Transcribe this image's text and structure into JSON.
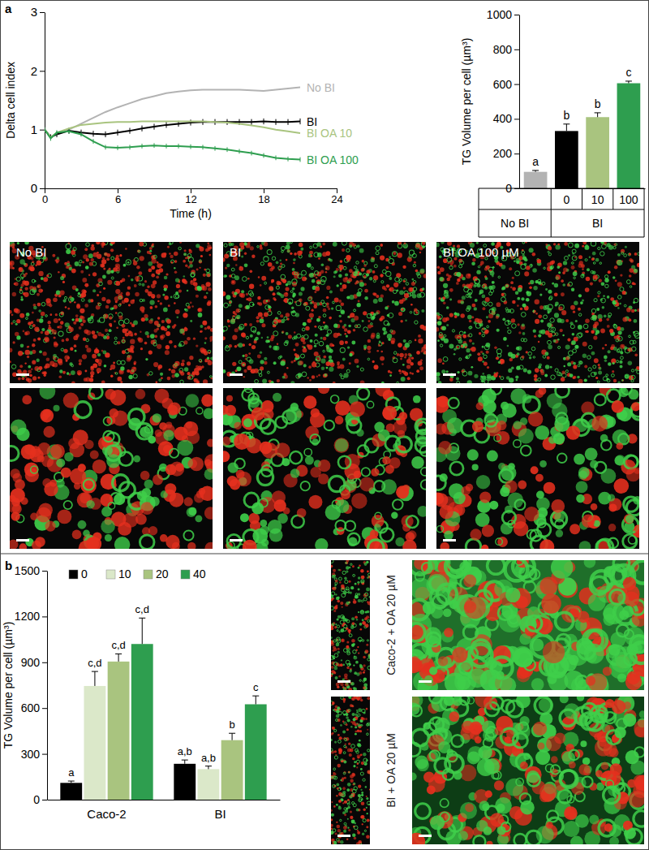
{
  "figure": {
    "panel_labels": [
      "a",
      "b"
    ],
    "micrographs": [
      "No BI",
      "BI",
      "BI OA 100 µM",
      "Caco-2 + OA 20 µM",
      "BI + OA 20 µM"
    ]
  },
  "chart_data": [
    {
      "type": "line",
      "x_label": "Time (h)",
      "y_label": "Delta cell index",
      "x": [
        0,
        0.5,
        1,
        2,
        3,
        4,
        5,
        6,
        7,
        8,
        9,
        10,
        11,
        12,
        13,
        14,
        15,
        16,
        17,
        18,
        19,
        20,
        21
      ],
      "xlim": [
        0,
        24
      ],
      "xticks": [
        0,
        6,
        12,
        18,
        24
      ],
      "ylim": [
        0,
        3
      ],
      "yticks": [
        0,
        1,
        2,
        3
      ],
      "series": [
        {
          "name": "No BI",
          "color": "#b3b3b3",
          "values": [
            1.0,
            0.88,
            0.92,
            1.0,
            1.1,
            1.2,
            1.3,
            1.38,
            1.45,
            1.52,
            1.57,
            1.62,
            1.65,
            1.67,
            1.68,
            1.68,
            1.68,
            1.68,
            1.67,
            1.66,
            1.68,
            1.7,
            1.72
          ]
        },
        {
          "name": "BI",
          "color": "#000000",
          "values": [
            1.0,
            0.87,
            0.92,
            0.98,
            0.95,
            0.93,
            0.92,
            0.95,
            0.98,
            1.02,
            1.05,
            1.08,
            1.1,
            1.12,
            1.13,
            1.13,
            1.13,
            1.13,
            1.13,
            1.14,
            1.13,
            1.13,
            1.14
          ],
          "errors": [
            0.05,
            0.05,
            0.05,
            0.05,
            0.05,
            0.05,
            0.05,
            0.05,
            0.05,
            0.05,
            0.05,
            0.05,
            0.05,
            0.05,
            0.05,
            0.05,
            0.05,
            0.05,
            0.05,
            0.05,
            0.05,
            0.05,
            0.05
          ]
        },
        {
          "name": "BI OA 10",
          "color": "#a9c47f",
          "values": [
            1.0,
            0.87,
            0.95,
            1.02,
            1.08,
            1.1,
            1.12,
            1.13,
            1.13,
            1.14,
            1.14,
            1.14,
            1.14,
            1.14,
            1.14,
            1.13,
            1.12,
            1.1,
            1.07,
            1.04,
            1.0,
            0.97,
            0.94
          ]
        },
        {
          "name": "BI OA 100",
          "color": "#2e9e4f",
          "values": [
            1.0,
            0.85,
            0.95,
            0.97,
            0.92,
            0.8,
            0.7,
            0.69,
            0.7,
            0.72,
            0.73,
            0.72,
            0.72,
            0.71,
            0.7,
            0.68,
            0.66,
            0.63,
            0.6,
            0.56,
            0.52,
            0.5,
            0.49
          ],
          "errors": [
            0.04,
            0.04,
            0.04,
            0.04,
            0.04,
            0.04,
            0.04,
            0.04,
            0.04,
            0.04,
            0.04,
            0.04,
            0.04,
            0.04,
            0.04,
            0.04,
            0.04,
            0.04,
            0.04,
            0.04,
            0.04,
            0.04,
            0.04
          ]
        }
      ]
    },
    {
      "type": "bar",
      "y_label": "TG Volume per cell (µm³)",
      "categories": [
        null,
        "0",
        "10",
        "100"
      ],
      "groups": [
        "No BI",
        "BI",
        "BI",
        "BI"
      ],
      "values": [
        95,
        330,
        410,
        605
      ],
      "errors": [
        8,
        40,
        25,
        12
      ],
      "letters": [
        "a",
        "b",
        "b",
        "c"
      ],
      "colors": [
        "#b3b3b3",
        "#000000",
        "#a9c47f",
        "#2e9e4f"
      ],
      "ylim": [
        0,
        1000
      ],
      "yticks": [
        0,
        200,
        400,
        600,
        800,
        1000
      ]
    },
    {
      "type": "bar",
      "y_label": "TG Volume per cell (µm³)",
      "categories": [
        "Caco-2",
        "BI"
      ],
      "legend": "top",
      "ylim": [
        0,
        1500
      ],
      "yticks": [
        0,
        300,
        600,
        900,
        1200,
        1500
      ],
      "series": [
        {
          "name": "0",
          "color": "#000000",
          "values": [
            110,
            235
          ],
          "errors": [
            12,
            25
          ],
          "letters": [
            "a",
            "a,b"
          ]
        },
        {
          "name": "10",
          "color": "#dbe8c9",
          "values": [
            745,
            200
          ],
          "errors": [
            95,
            20
          ],
          "letters": [
            "c,d",
            "a,b"
          ]
        },
        {
          "name": "20",
          "color": "#a9c47f",
          "values": [
            905,
            390
          ],
          "errors": [
            50,
            45
          ],
          "letters": [
            "c,d",
            "b"
          ]
        },
        {
          "name": "40",
          "color": "#2e9e4f",
          "values": [
            1020,
            625
          ],
          "errors": [
            170,
            55
          ],
          "letters": [
            "c,d",
            "c"
          ]
        }
      ]
    }
  ]
}
